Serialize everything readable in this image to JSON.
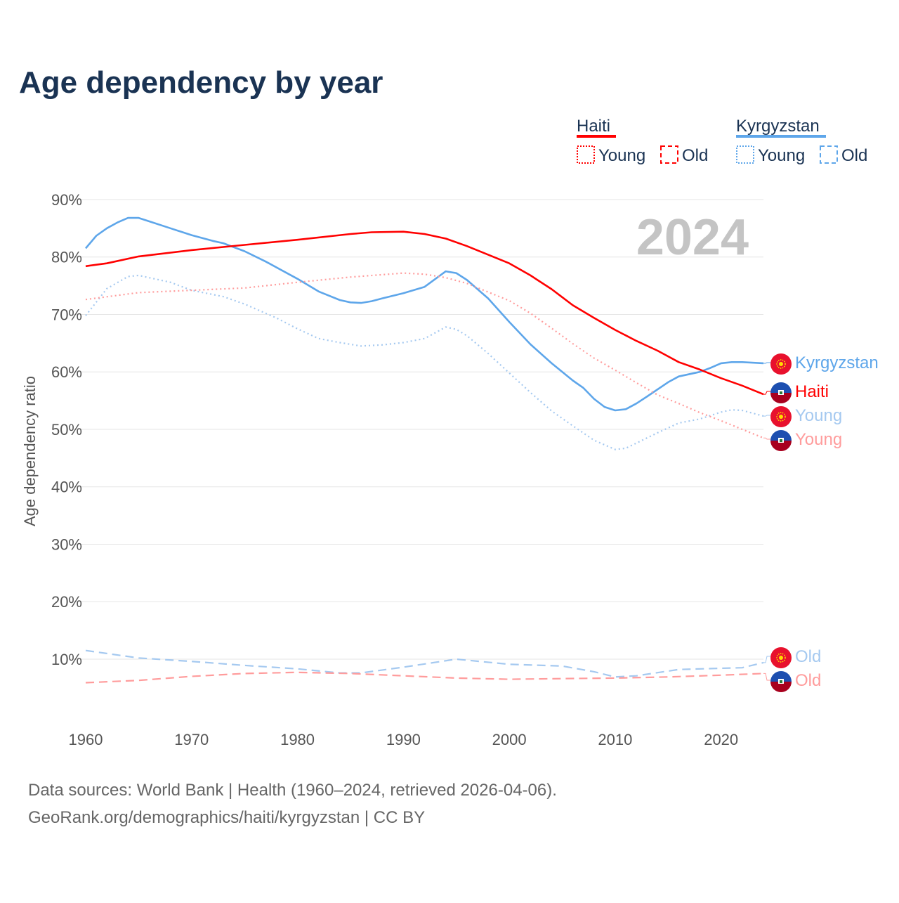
{
  "chart_data": {
    "type": "line",
    "title": "Age dependency by year",
    "ylabel": "Age dependency ratio",
    "xlabel": "",
    "xlim": [
      1960,
      2024
    ],
    "ylim": [
      0,
      90
    ],
    "x_ticks": [
      "1960",
      "1970",
      "1980",
      "1990",
      "2000",
      "2010",
      "2020"
    ],
    "y_ticks": [
      "10%",
      "20%",
      "30%",
      "40%",
      "50%",
      "60%",
      "70%",
      "80%",
      "90%"
    ],
    "grid": true,
    "year_overlay": "2024",
    "legend_placement": "top-right",
    "legend": {
      "groups": [
        {
          "name": "Haiti",
          "items": [
            "Young",
            "Old"
          ]
        },
        {
          "name": "Kyrgyzstan",
          "items": [
            "Young",
            "Old"
          ]
        }
      ]
    },
    "colors": {
      "haiti": "#ff0000",
      "haiti_light": "#ff9c9c",
      "kyrgyzstan": "#5ea6ea",
      "kyrgyzstan_light": "#a5c9f0"
    },
    "series": [
      {
        "name": "Kyrgyzstan",
        "end_label": "Kyrgyzstan",
        "country": "kyrgyzstan",
        "style": "solid",
        "points": [
          [
            1960,
            81.5
          ],
          [
            1961,
            83.7
          ],
          [
            1962,
            85
          ],
          [
            1963,
            86
          ],
          [
            1964,
            86.8
          ],
          [
            1965,
            86.8
          ],
          [
            1966,
            86.2
          ],
          [
            1968,
            85
          ],
          [
            1970,
            83.8
          ],
          [
            1972,
            82.8
          ],
          [
            1973,
            82.4
          ],
          [
            1975,
            81
          ],
          [
            1977,
            79.2
          ],
          [
            1980,
            76.2
          ],
          [
            1982,
            74
          ],
          [
            1984,
            72.5
          ],
          [
            1985,
            72.1
          ],
          [
            1986,
            72
          ],
          [
            1987,
            72.3
          ],
          [
            1988,
            72.8
          ],
          [
            1990,
            73.7
          ],
          [
            1992,
            74.8
          ],
          [
            1994,
            77.5
          ],
          [
            1995,
            77.2
          ],
          [
            1996,
            76
          ],
          [
            1998,
            72.8
          ],
          [
            2000,
            68.7
          ],
          [
            2002,
            64.8
          ],
          [
            2004,
            61.5
          ],
          [
            2006,
            58.5
          ],
          [
            2007,
            57.2
          ],
          [
            2008,
            55.3
          ],
          [
            2009,
            53.9
          ],
          [
            2010,
            53.3
          ],
          [
            2011,
            53.5
          ],
          [
            2012,
            54.5
          ],
          [
            2013,
            55.7
          ],
          [
            2015,
            58.2
          ],
          [
            2016,
            59.2
          ],
          [
            2018,
            60
          ],
          [
            2019,
            60.7
          ],
          [
            2020,
            61.5
          ],
          [
            2021,
            61.7
          ],
          [
            2022,
            61.7
          ],
          [
            2024,
            61.5
          ]
        ]
      },
      {
        "name": "Haiti",
        "end_label": "Haiti",
        "country": "haiti",
        "style": "solid",
        "points": [
          [
            1960,
            78.4
          ],
          [
            1962,
            78.9
          ],
          [
            1965,
            80.1
          ],
          [
            1970,
            81.2
          ],
          [
            1975,
            82.1
          ],
          [
            1980,
            83
          ],
          [
            1985,
            84
          ],
          [
            1987,
            84.3
          ],
          [
            1990,
            84.4
          ],
          [
            1992,
            84
          ],
          [
            1994,
            83.2
          ],
          [
            1996,
            81.9
          ],
          [
            1998,
            80.4
          ],
          [
            2000,
            78.9
          ],
          [
            2002,
            76.8
          ],
          [
            2004,
            74.4
          ],
          [
            2005,
            73
          ],
          [
            2006,
            71.6
          ],
          [
            2008,
            69.4
          ],
          [
            2010,
            67.3
          ],
          [
            2012,
            65.4
          ],
          [
            2014,
            63.7
          ],
          [
            2016,
            61.7
          ],
          [
            2018,
            60.4
          ],
          [
            2020,
            58.9
          ],
          [
            2022,
            57.6
          ],
          [
            2024,
            56.1
          ]
        ]
      },
      {
        "name": "Kyrgyzstan Young",
        "end_label": "Young",
        "country": "kyrgyzstan",
        "style": "dotted",
        "points": [
          [
            1960,
            69.8
          ],
          [
            1962,
            74.5
          ],
          [
            1964,
            76.6
          ],
          [
            1965,
            76.8
          ],
          [
            1968,
            75.6
          ],
          [
            1970,
            74.2
          ],
          [
            1973,
            73.1
          ],
          [
            1975,
            71.8
          ],
          [
            1978,
            69.4
          ],
          [
            1980,
            67.5
          ],
          [
            1982,
            65.8
          ],
          [
            1984,
            65.1
          ],
          [
            1986,
            64.5
          ],
          [
            1988,
            64.7
          ],
          [
            1990,
            65.1
          ],
          [
            1992,
            65.8
          ],
          [
            1994,
            67.8
          ],
          [
            1995,
            67.4
          ],
          [
            1996,
            66.3
          ],
          [
            1998,
            63.2
          ],
          [
            2000,
            59.8
          ],
          [
            2002,
            56.4
          ],
          [
            2004,
            53.2
          ],
          [
            2006,
            50.6
          ],
          [
            2008,
            48.1
          ],
          [
            2010,
            46.5
          ],
          [
            2011,
            46.7
          ],
          [
            2012,
            47.6
          ],
          [
            2014,
            49.4
          ],
          [
            2016,
            51.1
          ],
          [
            2018,
            51.8
          ],
          [
            2020,
            53
          ],
          [
            2021,
            53.4
          ],
          [
            2022,
            53.3
          ],
          [
            2024,
            52.3
          ]
        ]
      },
      {
        "name": "Haiti Young",
        "end_label": "Young",
        "country": "haiti",
        "style": "dotted",
        "points": [
          [
            1960,
            72.6
          ],
          [
            1965,
            73.8
          ],
          [
            1970,
            74.2
          ],
          [
            1975,
            74.6
          ],
          [
            1980,
            75.6
          ],
          [
            1985,
            76.5
          ],
          [
            1990,
            77.2
          ],
          [
            1992,
            77
          ],
          [
            1994,
            76.4
          ],
          [
            1996,
            75.4
          ],
          [
            1998,
            73.9
          ],
          [
            2000,
            72.4
          ],
          [
            2002,
            70.2
          ],
          [
            2004,
            67.6
          ],
          [
            2006,
            64.9
          ],
          [
            2008,
            62.4
          ],
          [
            2010,
            60.3
          ],
          [
            2012,
            58.1
          ],
          [
            2014,
            56
          ],
          [
            2016,
            54.5
          ],
          [
            2018,
            52.9
          ],
          [
            2020,
            51.5
          ],
          [
            2022,
            50
          ],
          [
            2024,
            48.5
          ]
        ]
      },
      {
        "name": "Kyrgyzstan Old",
        "end_label": "Old",
        "country": "kyrgyzstan",
        "style": "dashed",
        "points": [
          [
            1960,
            11.5
          ],
          [
            1965,
            10.2
          ],
          [
            1970,
            9.6
          ],
          [
            1975,
            8.9
          ],
          [
            1980,
            8.3
          ],
          [
            1984,
            7.6
          ],
          [
            1986,
            7.6
          ],
          [
            1990,
            8.6
          ],
          [
            1995,
            10
          ],
          [
            2000,
            9.1
          ],
          [
            2005,
            8.8
          ],
          [
            2008,
            7.8
          ],
          [
            2010,
            6.9
          ],
          [
            2012,
            7.1
          ],
          [
            2016,
            8.2
          ],
          [
            2020,
            8.4
          ],
          [
            2022,
            8.5
          ],
          [
            2024,
            9.4
          ]
        ]
      },
      {
        "name": "Haiti Old",
        "end_label": "Old",
        "country": "haiti",
        "style": "dashed",
        "points": [
          [
            1960,
            5.9
          ],
          [
            1965,
            6.3
          ],
          [
            1970,
            7
          ],
          [
            1975,
            7.5
          ],
          [
            1980,
            7.7
          ],
          [
            1985,
            7.5
          ],
          [
            1990,
            7.1
          ],
          [
            1995,
            6.7
          ],
          [
            2000,
            6.5
          ],
          [
            2005,
            6.6
          ],
          [
            2010,
            6.7
          ],
          [
            2015,
            6.9
          ],
          [
            2020,
            7.2
          ],
          [
            2024,
            7.5
          ]
        ]
      }
    ]
  },
  "footer": {
    "line1": "Data sources: World Bank | Health (1960–2024, retrieved 2026-04-06).",
    "line2": "GeoRank.org/demographics/haiti/kyrgyzstan | CC BY"
  }
}
